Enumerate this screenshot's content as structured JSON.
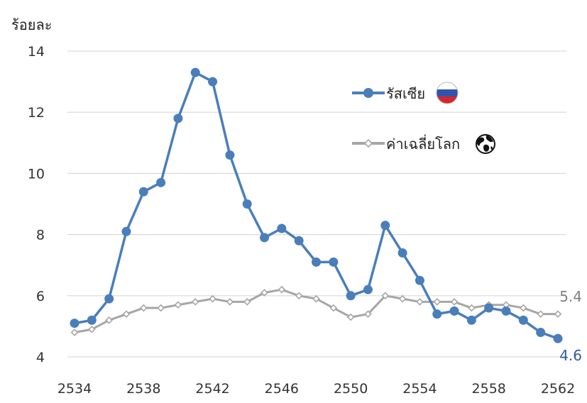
{
  "chart_data": {
    "type": "line",
    "ylabel": "ร้อยละ",
    "ylim": [
      4,
      14
    ],
    "yticks": [
      4,
      6,
      8,
      10,
      12,
      14
    ],
    "xlim": [
      2534,
      2562
    ],
    "xticks": [
      2534,
      2538,
      2542,
      2546,
      2550,
      2554,
      2558,
      2562
    ],
    "grid": "horizontal",
    "legend_position": "top-right",
    "x": [
      2534,
      2535,
      2536,
      2537,
      2538,
      2539,
      2540,
      2541,
      2542,
      2543,
      2544,
      2545,
      2546,
      2547,
      2548,
      2549,
      2550,
      2551,
      2552,
      2553,
      2554,
      2555,
      2556,
      2557,
      2558,
      2559,
      2560,
      2561,
      2562
    ],
    "series": [
      {
        "name": "รัสเซีย",
        "color": "#4a7ebb",
        "marker": "circle",
        "values": [
          5.1,
          5.2,
          5.9,
          8.1,
          9.4,
          9.7,
          11.8,
          13.3,
          13.0,
          10.6,
          9.0,
          7.9,
          8.2,
          7.8,
          7.1,
          7.1,
          6.0,
          6.2,
          8.3,
          7.4,
          6.5,
          5.4,
          5.5,
          5.2,
          5.6,
          5.5,
          5.2,
          4.8,
          4.6
        ],
        "end_label": "4.6",
        "legend_icon": "russia-flag-icon"
      },
      {
        "name": "ค่าเฉลี่ยโลก",
        "color": "#a6a6a6",
        "marker": "diamond",
        "values": [
          4.8,
          4.9,
          5.2,
          5.4,
          5.6,
          5.6,
          5.7,
          5.8,
          5.9,
          5.8,
          5.8,
          6.1,
          6.2,
          6.0,
          5.9,
          5.6,
          5.3,
          5.4,
          6.0,
          5.9,
          5.8,
          5.8,
          5.8,
          5.6,
          5.7,
          5.7,
          5.6,
          5.4,
          5.4
        ],
        "end_label": "5.4",
        "legend_icon": "globe-icon"
      }
    ]
  }
}
